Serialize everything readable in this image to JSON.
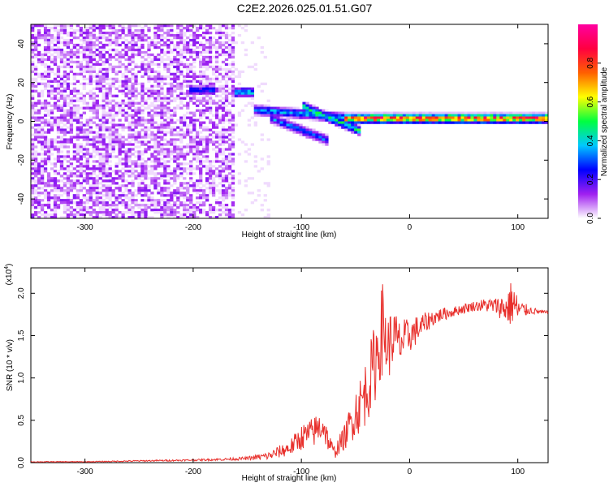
{
  "title": "C2E2.2026.025.01.51.G07",
  "colors": {
    "snr_line": "#e8302c",
    "axis": "#000000"
  },
  "chart_data": [
    {
      "type": "heatmap",
      "name": "spectrogram",
      "xlabel": "Height of straight line (km)",
      "ylabel": "Frequency (Hz)",
      "xlim": [
        -350,
        128
      ],
      "ylim": [
        -50,
        50
      ],
      "xticks": [
        "-300",
        "-200",
        "-100",
        "0",
        "100"
      ],
      "yticks": [
        "-40",
        "-20",
        "0",
        "20",
        "40"
      ],
      "colorbar": {
        "label": "Normalized spectral amplitude",
        "range": [
          0,
          1
        ],
        "ticks": [
          "0.0",
          "0.2",
          "0.4",
          "0.6",
          "0.8"
        ],
        "colormap": [
          "#ffffff",
          "#a020f0",
          "#0000ff",
          "#00c8ff",
          "#00ff40",
          "#ffff00",
          "#ff6000",
          "#ff0040",
          "#ff00a0"
        ]
      },
      "noise_region_x": [
        -350,
        -163
      ],
      "features": [
        {
          "x_from": -205,
          "x_to": -180,
          "freq": 16,
          "amp": 0.3
        },
        {
          "x_from": -162,
          "x_to": -145,
          "freq": 15,
          "amp": 0.45
        },
        {
          "x_from": -145,
          "x_to": -60,
          "freq_from": 6,
          "freq_to": 2,
          "amp": 0.4
        },
        {
          "x_from": -100,
          "x_to": -45,
          "freq_from": 8,
          "freq_to": -5,
          "amp": 0.5
        },
        {
          "x_from": -130,
          "x_to": -75,
          "freq_from": 2,
          "freq_to": -10,
          "amp": 0.35
        },
        {
          "x_from": -60,
          "x_to": 128,
          "freq": 1.5,
          "amp": 0.9
        }
      ]
    },
    {
      "type": "line",
      "name": "snr",
      "xlabel": "Height of straight line (km)",
      "ylabel": "SNR (10 * v/v)",
      "scale_label": "(x10",
      "scale_exp": "4",
      "scale_close": ")",
      "xlim": [
        -350,
        128
      ],
      "ylim": [
        0,
        2.3
      ],
      "xticks": [
        "-300",
        "-200",
        "-100",
        "0",
        "100"
      ],
      "yticks": [
        "0.0",
        "0.5",
        "1.0",
        "1.5",
        "2.0"
      ],
      "x": [
        -350,
        -300,
        -250,
        -200,
        -170,
        -150,
        -130,
        -110,
        -100,
        -90,
        -80,
        -75,
        -70,
        -60,
        -50,
        -45,
        -40,
        -35,
        -30,
        -25,
        -20,
        -15,
        -10,
        -5,
        0,
        5,
        10,
        20,
        30,
        40,
        50,
        60,
        70,
        80,
        90,
        95,
        100,
        110,
        120,
        128
      ],
      "values": [
        0.01,
        0.01,
        0.02,
        0.03,
        0.04,
        0.05,
        0.08,
        0.18,
        0.3,
        0.35,
        0.45,
        0.25,
        0.12,
        0.3,
        0.6,
        0.7,
        0.85,
        1.05,
        1.3,
        1.6,
        1.35,
        1.5,
        1.4,
        1.45,
        1.5,
        1.55,
        1.6,
        1.7,
        1.75,
        1.78,
        1.82,
        1.85,
        1.86,
        1.85,
        1.82,
        1.9,
        1.8,
        1.8,
        1.78,
        1.77
      ],
      "noise": [
        0.005,
        0.005,
        0.008,
        0.01,
        0.015,
        0.02,
        0.05,
        0.1,
        0.15,
        0.18,
        0.2,
        0.12,
        0.08,
        0.15,
        0.3,
        0.35,
        0.4,
        0.45,
        0.5,
        0.55,
        0.4,
        0.35,
        0.3,
        0.25,
        0.2,
        0.18,
        0.15,
        0.1,
        0.08,
        0.06,
        0.06,
        0.06,
        0.08,
        0.1,
        0.2,
        0.3,
        0.15,
        0.05,
        0.03,
        0.02
      ]
    }
  ]
}
